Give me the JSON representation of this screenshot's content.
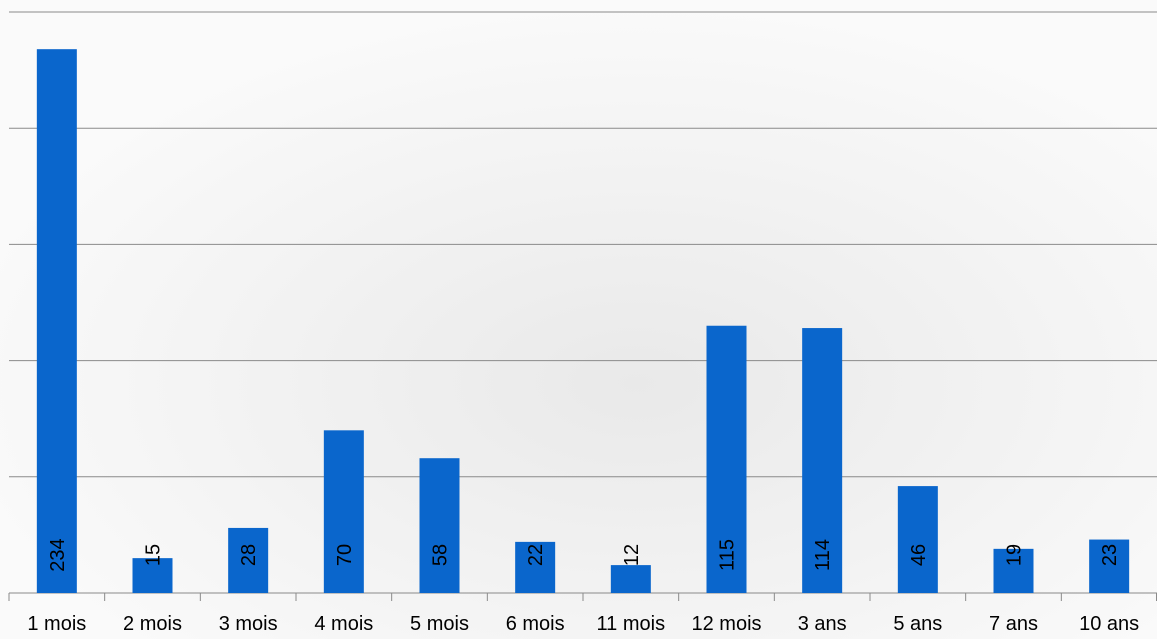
{
  "chart_data": {
    "type": "bar",
    "categories": [
      "1 mois",
      "2 mois",
      "3 mois",
      "4 mois",
      "5 mois",
      "6 mois",
      "11 mois",
      "12 mois",
      "3 ans",
      "5 ans",
      "7 ans",
      "10 ans"
    ],
    "values": [
      234,
      15,
      28,
      70,
      58,
      22,
      12,
      115,
      114,
      46,
      19,
      23
    ],
    "color": "#0a66cc",
    "ylim": [
      0,
      250
    ],
    "yticks": [
      0,
      50,
      100,
      150,
      200,
      250
    ],
    "grid": true
  }
}
